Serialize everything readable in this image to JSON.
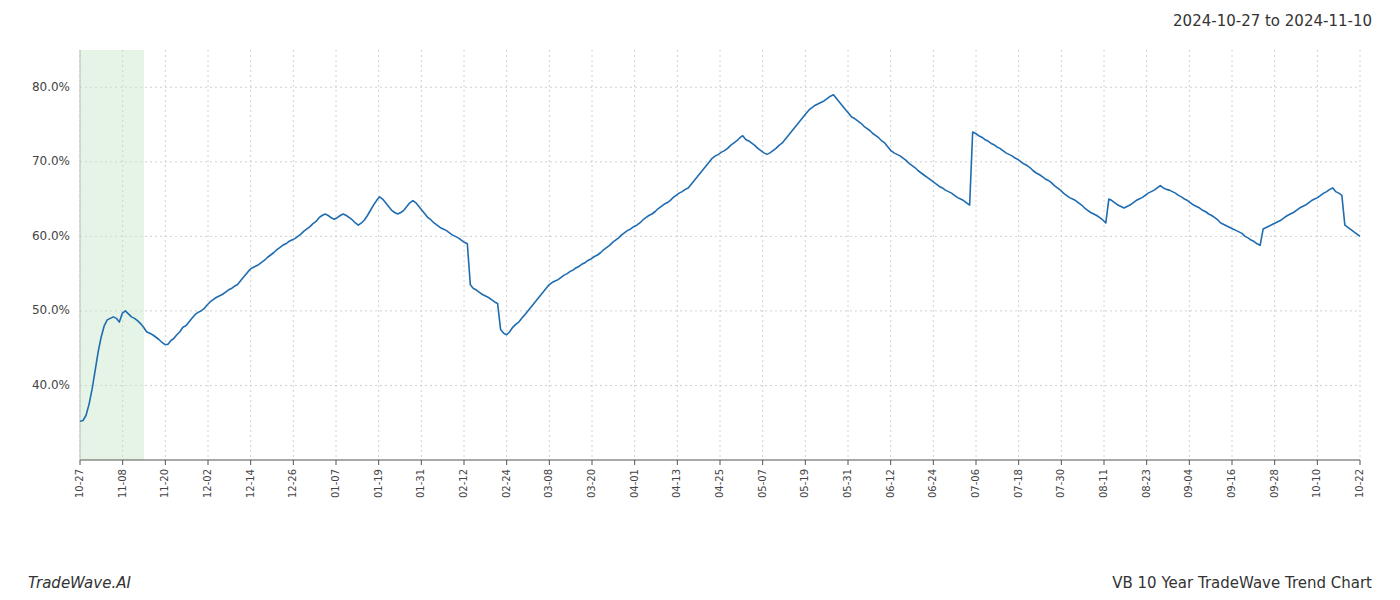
{
  "chart_data": {
    "type": "line",
    "title": "2024-10-27 to 2024-11-10",
    "annotations": [
      "TradeWave.AI",
      "VB 10 Year TradeWave Trend Chart"
    ],
    "color": "#1f6cb0",
    "grid": true,
    "xlim": [
      0,
      30
    ],
    "xticks": [
      {
        "value": 0,
        "label": "10-27"
      },
      {
        "value": 1,
        "label": "11-08"
      },
      {
        "value": 2,
        "label": "11-20"
      },
      {
        "value": 3,
        "label": "12-02"
      },
      {
        "value": 4,
        "label": "12-14"
      },
      {
        "value": 5,
        "label": "12-26"
      },
      {
        "value": 6,
        "label": "01-07"
      },
      {
        "value": 7,
        "label": "01-19"
      },
      {
        "value": 8,
        "label": "01-31"
      },
      {
        "value": 9,
        "label": "02-12"
      },
      {
        "value": 10,
        "label": "02-24"
      },
      {
        "value": 11,
        "label": "03-08"
      },
      {
        "value": 12,
        "label": "03-20"
      },
      {
        "value": 13,
        "label": "04-01"
      },
      {
        "value": 14,
        "label": "04-13"
      },
      {
        "value": 15,
        "label": "04-25"
      },
      {
        "value": 16,
        "label": "05-07"
      },
      {
        "value": 17,
        "label": "05-19"
      },
      {
        "value": 18,
        "label": "05-31"
      },
      {
        "value": 19,
        "label": "06-12"
      },
      {
        "value": 20,
        "label": "06-24"
      },
      {
        "value": 21,
        "label": "07-06"
      },
      {
        "value": 22,
        "label": "07-18"
      },
      {
        "value": 23,
        "label": "07-30"
      },
      {
        "value": 24,
        "label": "08-11"
      },
      {
        "value": 25,
        "label": "08-23"
      },
      {
        "value": 26,
        "label": "09-04"
      },
      {
        "value": 27,
        "label": "09-16"
      },
      {
        "value": 28,
        "label": "09-28"
      },
      {
        "value": 29,
        "label": "10-10"
      },
      {
        "value": 30,
        "label": "10-22"
      }
    ],
    "ylim": [
      0.3,
      0.85
    ],
    "yticks": [
      {
        "value": 0.4,
        "label": "40.0%"
      },
      {
        "value": 0.5,
        "label": "50.0%"
      },
      {
        "value": 0.6,
        "label": "60.0%"
      },
      {
        "value": 0.7,
        "label": "70.0%"
      },
      {
        "value": 0.8,
        "label": "80.0%"
      }
    ],
    "highlight": {
      "x": [
        0,
        1.5
      ],
      "color": "#c8e6c9"
    },
    "values": [
      0.352,
      0.353,
      0.36,
      0.375,
      0.395,
      0.42,
      0.445,
      0.465,
      0.48,
      0.488,
      0.49,
      0.492,
      0.49,
      0.485,
      0.497,
      0.5,
      0.496,
      0.492,
      0.49,
      0.487,
      0.483,
      0.478,
      0.472,
      0.47,
      0.468,
      0.465,
      0.462,
      0.458,
      0.455,
      0.455,
      0.46,
      0.463,
      0.468,
      0.472,
      0.478,
      0.48,
      0.485,
      0.49,
      0.495,
      0.498,
      0.5,
      0.503,
      0.508,
      0.512,
      0.515,
      0.518,
      0.52,
      0.522,
      0.525,
      0.528,
      0.53,
      0.533,
      0.535,
      0.54,
      0.545,
      0.55,
      0.555,
      0.558,
      0.56,
      0.562,
      0.565,
      0.568,
      0.572,
      0.575,
      0.578,
      0.582,
      0.585,
      0.588,
      0.59,
      0.593,
      0.595,
      0.597,
      0.6,
      0.603,
      0.607,
      0.61,
      0.613,
      0.617,
      0.62,
      0.625,
      0.628,
      0.63,
      0.628,
      0.625,
      0.623,
      0.625,
      0.628,
      0.63,
      0.628,
      0.625,
      0.622,
      0.618,
      0.615,
      0.618,
      0.622,
      0.628,
      0.635,
      0.642,
      0.648,
      0.653,
      0.65,
      0.645,
      0.64,
      0.635,
      0.632,
      0.63,
      0.632,
      0.635,
      0.64,
      0.645,
      0.648,
      0.645,
      0.64,
      0.635,
      0.63,
      0.625,
      0.622,
      0.618,
      0.615,
      0.612,
      0.61,
      0.608,
      0.605,
      0.602,
      0.6,
      0.598,
      0.595,
      0.592,
      0.59,
      0.535,
      0.53,
      0.528,
      0.525,
      0.522,
      0.52,
      0.518,
      0.515,
      0.512,
      0.51,
      0.475,
      0.47,
      0.468,
      0.472,
      0.478,
      0.482,
      0.485,
      0.49,
      0.495,
      0.5,
      0.505,
      0.51,
      0.515,
      0.52,
      0.525,
      0.53,
      0.535,
      0.538,
      0.54,
      0.542,
      0.545,
      0.548,
      0.55,
      0.553,
      0.555,
      0.558,
      0.56,
      0.563,
      0.565,
      0.568,
      0.57,
      0.573,
      0.575,
      0.578,
      0.582,
      0.585,
      0.588,
      0.592,
      0.595,
      0.598,
      0.602,
      0.605,
      0.608,
      0.61,
      0.613,
      0.615,
      0.618,
      0.622,
      0.625,
      0.628,
      0.63,
      0.633,
      0.637,
      0.64,
      0.643,
      0.645,
      0.648,
      0.652,
      0.655,
      0.658,
      0.66,
      0.663,
      0.665,
      0.67,
      0.675,
      0.68,
      0.685,
      0.69,
      0.695,
      0.7,
      0.705,
      0.708,
      0.71,
      0.713,
      0.715,
      0.718,
      0.722,
      0.725,
      0.728,
      0.732,
      0.735,
      0.73,
      0.728,
      0.725,
      0.722,
      0.718,
      0.715,
      0.712,
      0.71,
      0.712,
      0.715,
      0.718,
      0.722,
      0.725,
      0.73,
      0.735,
      0.74,
      0.745,
      0.75,
      0.755,
      0.76,
      0.765,
      0.77,
      0.773,
      0.776,
      0.778,
      0.78,
      0.782,
      0.785,
      0.788,
      0.79,
      0.785,
      0.78,
      0.775,
      0.77,
      0.765,
      0.76,
      0.758,
      0.755,
      0.752,
      0.748,
      0.745,
      0.742,
      0.738,
      0.735,
      0.732,
      0.728,
      0.725,
      0.72,
      0.715,
      0.712,
      0.71,
      0.708,
      0.705,
      0.702,
      0.698,
      0.695,
      0.692,
      0.688,
      0.685,
      0.682,
      0.679,
      0.676,
      0.673,
      0.67,
      0.667,
      0.665,
      0.662,
      0.66,
      0.658,
      0.655,
      0.652,
      0.65,
      0.648,
      0.645,
      0.642,
      0.74,
      0.738,
      0.735,
      0.733,
      0.73,
      0.728,
      0.725,
      0.723,
      0.72,
      0.718,
      0.715,
      0.712,
      0.71,
      0.708,
      0.705,
      0.703,
      0.7,
      0.697,
      0.695,
      0.692,
      0.688,
      0.685,
      0.683,
      0.68,
      0.677,
      0.675,
      0.672,
      0.668,
      0.665,
      0.662,
      0.658,
      0.655,
      0.652,
      0.65,
      0.648,
      0.645,
      0.642,
      0.638,
      0.635,
      0.632,
      0.63,
      0.628,
      0.625,
      0.622,
      0.618,
      0.65,
      0.648,
      0.645,
      0.642,
      0.64,
      0.638,
      0.64,
      0.642,
      0.645,
      0.648,
      0.65,
      0.652,
      0.655,
      0.658,
      0.66,
      0.662,
      0.665,
      0.668,
      0.665,
      0.663,
      0.662,
      0.66,
      0.658,
      0.655,
      0.653,
      0.65,
      0.648,
      0.645,
      0.642,
      0.64,
      0.638,
      0.635,
      0.633,
      0.63,
      0.628,
      0.625,
      0.622,
      0.618,
      0.616,
      0.614,
      0.612,
      0.61,
      0.608,
      0.606,
      0.604,
      0.6,
      0.598,
      0.595,
      0.593,
      0.59,
      0.588,
      0.61,
      0.612,
      0.614,
      0.616,
      0.618,
      0.62,
      0.622,
      0.625,
      0.628,
      0.63,
      0.632,
      0.635,
      0.638,
      0.64,
      0.642,
      0.645,
      0.648,
      0.65,
      0.652,
      0.655,
      0.658,
      0.66,
      0.663,
      0.665,
      0.66,
      0.658,
      0.655,
      0.615,
      0.612,
      0.609,
      0.606,
      0.603,
      0.6
    ]
  }
}
